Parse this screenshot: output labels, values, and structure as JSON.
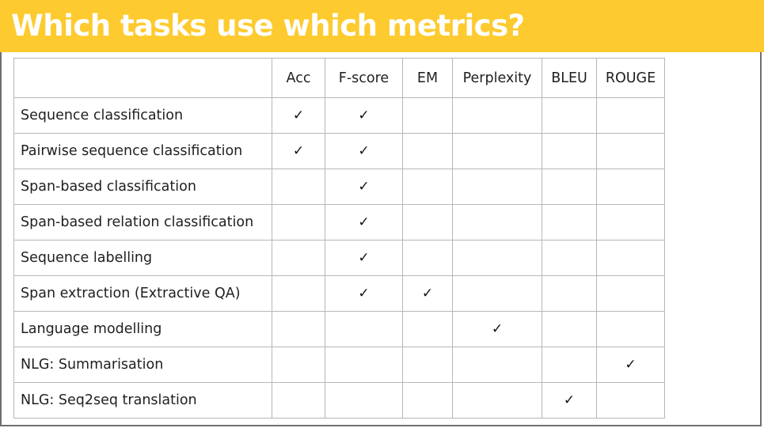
{
  "slide": {
    "title": "Which tasks use which metrics?",
    "accent_color": "#fdcb2f"
  },
  "table": {
    "columns": [
      "",
      "Acc",
      "F-score",
      "EM",
      "Perplexity",
      "BLEU",
      "ROUGE"
    ],
    "check_symbol": "✓",
    "rows": [
      {
        "task": "Sequence classification",
        "marks": [
          true,
          true,
          false,
          false,
          false,
          false
        ]
      },
      {
        "task": "Pairwise sequence classification",
        "marks": [
          true,
          true,
          false,
          false,
          false,
          false
        ]
      },
      {
        "task": "Span-based classification",
        "marks": [
          false,
          true,
          false,
          false,
          false,
          false
        ]
      },
      {
        "task": "Span-based relation classification",
        "marks": [
          false,
          true,
          false,
          false,
          false,
          false
        ]
      },
      {
        "task": "Sequence labelling",
        "marks": [
          false,
          true,
          false,
          false,
          false,
          false
        ]
      },
      {
        "task": "Span extraction (Extractive QA)",
        "marks": [
          false,
          true,
          true,
          false,
          false,
          false
        ]
      },
      {
        "task": "Language modelling",
        "marks": [
          false,
          false,
          false,
          true,
          false,
          false
        ]
      },
      {
        "task": "NLG: Summarisation",
        "marks": [
          false,
          false,
          false,
          false,
          false,
          true
        ]
      },
      {
        "task": "NLG: Seq2seq translation",
        "marks": [
          false,
          false,
          false,
          false,
          true,
          false
        ]
      }
    ]
  }
}
